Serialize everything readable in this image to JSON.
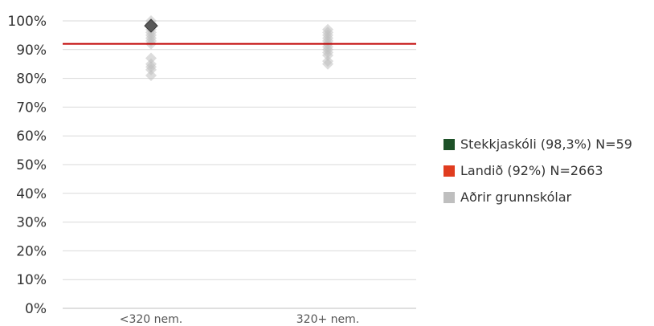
{
  "chart_data": {
    "type": "scatter",
    "categories": [
      "<320 nem.",
      "320+ nem."
    ],
    "ylim": [
      0,
      1
    ],
    "yticks": [
      {
        "value": 0,
        "label": "0%"
      },
      {
        "value": 0.1,
        "label": "10%"
      },
      {
        "value": 0.2,
        "label": "20%"
      },
      {
        "value": 0.3,
        "label": "30%"
      },
      {
        "value": 0.4,
        "label": "40%"
      },
      {
        "value": 0.5,
        "label": "50%"
      },
      {
        "value": 0.6,
        "label": "60%"
      },
      {
        "value": 0.7,
        "label": "70%"
      },
      {
        "value": 0.8,
        "label": "80%"
      },
      {
        "value": 0.9,
        "label": "90%"
      },
      {
        "value": 1.0,
        "label": "100%"
      }
    ],
    "grid": true,
    "legend_position": "right",
    "reference_line": {
      "name": "Landið (92%) N=2663",
      "value": 0.92,
      "color": "#c00000"
    },
    "series": [
      {
        "name": "Aðrir grunnskólar",
        "color": "#bfbfbf",
        "points": [
          {
            "category": "<320 nem.",
            "y": 1.0
          },
          {
            "category": "<320 nem.",
            "y": 0.99
          },
          {
            "category": "<320 nem.",
            "y": 0.97
          },
          {
            "category": "<320 nem.",
            "y": 0.96
          },
          {
            "category": "<320 nem.",
            "y": 0.95
          },
          {
            "category": "<320 nem.",
            "y": 0.94
          },
          {
            "category": "<320 nem.",
            "y": 0.93
          },
          {
            "category": "<320 nem.",
            "y": 0.92
          },
          {
            "category": "<320 nem.",
            "y": 0.87
          },
          {
            "category": "<320 nem.",
            "y": 0.85
          },
          {
            "category": "<320 nem.",
            "y": 0.84
          },
          {
            "category": "<320 nem.",
            "y": 0.83
          },
          {
            "category": "<320 nem.",
            "y": 0.81
          },
          {
            "category": "320+ nem.",
            "y": 0.97
          },
          {
            "category": "320+ nem.",
            "y": 0.96
          },
          {
            "category": "320+ nem.",
            "y": 0.95
          },
          {
            "category": "320+ nem.",
            "y": 0.94
          },
          {
            "category": "320+ nem.",
            "y": 0.93
          },
          {
            "category": "320+ nem.",
            "y": 0.92
          },
          {
            "category": "320+ nem.",
            "y": 0.91
          },
          {
            "category": "320+ nem.",
            "y": 0.9
          },
          {
            "category": "320+ nem.",
            "y": 0.89
          },
          {
            "category": "320+ nem.",
            "y": 0.88
          },
          {
            "category": "320+ nem.",
            "y": 0.86
          },
          {
            "category": "320+ nem.",
            "y": 0.85
          }
        ]
      },
      {
        "name": "Stekkjaskóli (98,3%) N=59",
        "color": "#1e5128",
        "marker_color": "#595959",
        "points": [
          {
            "category": "<320 nem.",
            "y": 0.983
          }
        ]
      }
    ],
    "legend": [
      {
        "label": "Stekkjaskóli (98,3%) N=59",
        "color": "#1e5128"
      },
      {
        "label": "Landið (92%) N=2663",
        "color": "#e03c1f"
      },
      {
        "label": "Aðrir grunnskólar",
        "color": "#bfbfbf"
      }
    ]
  }
}
